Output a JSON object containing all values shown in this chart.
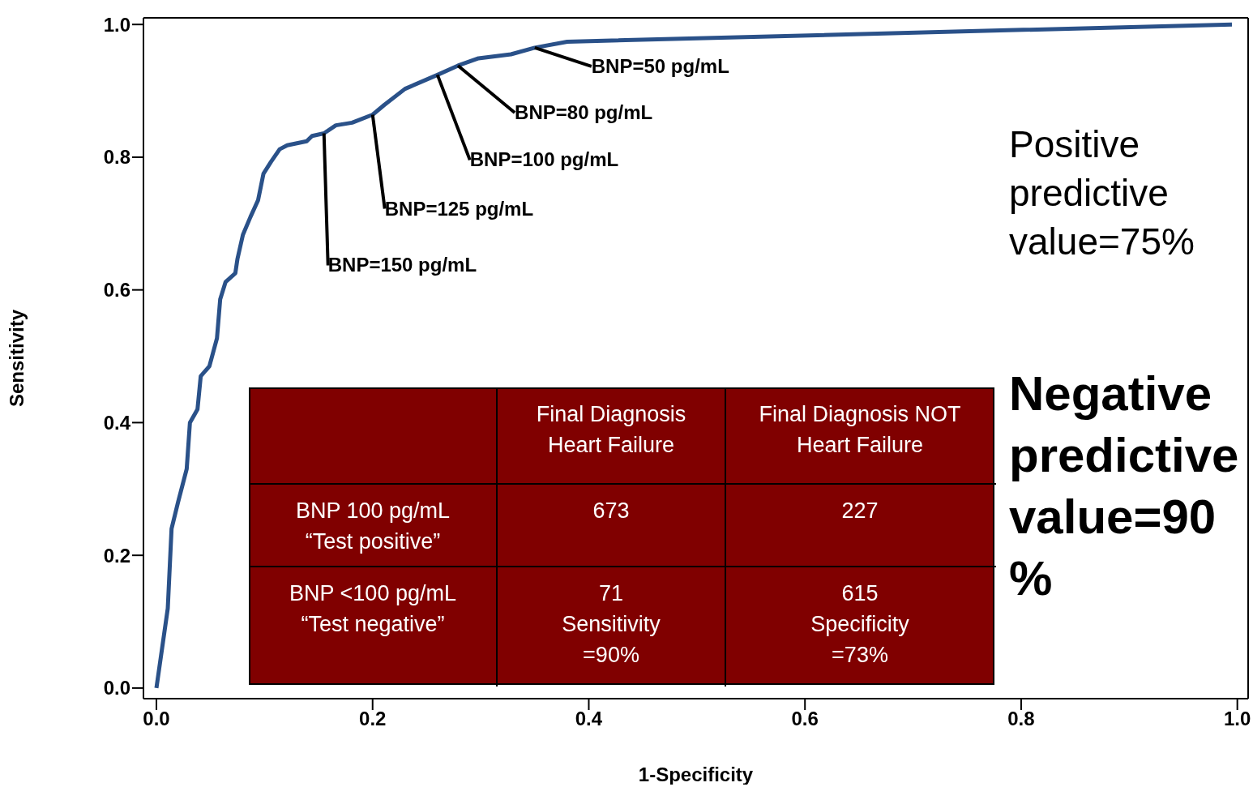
{
  "chart_data": {
    "type": "line",
    "xlabel": "1-Specificity",
    "ylabel": "Sensitivity",
    "x": [
      0,
      0.0105,
      0.014,
      0.02,
      0.028,
      0.031,
      0.038,
      0.041,
      0.049,
      0.056,
      0.059,
      0.064,
      0.073,
      0.075,
      0.08,
      0.087,
      0.094,
      0.099,
      0.106,
      0.114,
      0.121,
      0.139,
      0.144,
      0.155,
      0.166,
      0.181,
      0.2,
      0.211,
      0.23,
      0.26,
      0.279,
      0.298,
      0.328,
      0.35,
      0.38,
      0.995
    ],
    "series": [
      {
        "color": "#2a5189",
        "values": [
          0,
          0.12,
          0.24,
          0.28,
          0.33,
          0.4,
          0.42,
          0.47,
          0.485,
          0.527,
          0.586,
          0.612,
          0.625,
          0.647,
          0.683,
          0.71,
          0.735,
          0.775,
          0.793,
          0.812,
          0.818,
          0.824,
          0.832,
          0.836,
          0.848,
          0.852,
          0.864,
          0.879,
          0.903,
          0.924,
          0.938,
          0.949,
          0.955,
          0.965,
          0.974,
          1.0
        ]
      }
    ],
    "xlim": [
      -0.012,
      1.01
    ],
    "ylim": [
      -0.016,
      1.01
    ],
    "xticks": [
      {
        "value": 0,
        "label": "0.0"
      },
      {
        "value": 0.2,
        "label": "0.2"
      },
      {
        "value": 0.4,
        "label": "0.4"
      },
      {
        "value": 0.6,
        "label": "0.6"
      },
      {
        "value": 0.8,
        "label": "0.8"
      },
      {
        "value": 1,
        "label": "1.0"
      }
    ],
    "yticks": [
      {
        "value": 0,
        "label": "0.0"
      },
      {
        "value": 0.2,
        "label": "0.2"
      },
      {
        "value": 0.4,
        "label": "0.4"
      },
      {
        "value": 0.6,
        "label": "0.6"
      },
      {
        "value": 0.8,
        "label": "0.8"
      },
      {
        "value": 1,
        "label": "1.0"
      }
    ],
    "marker": "none",
    "line_style": "solid",
    "annotations": [
      {
        "text": "BNP=50 pg/mL",
        "x": 0.35,
        "y": 0.965
      },
      {
        "text": "BNP=80 pg/mL",
        "x": 0.279,
        "y": 0.938
      },
      {
        "text": "BNP=100 pg/mL",
        "x": 0.26,
        "y": 0.924
      },
      {
        "text": "BNP=125 pg/mL",
        "x": 0.2,
        "y": 0.864
      },
      {
        "text": "BNP=150 pg/mL",
        "x": 0.155,
        "y": 0.836
      },
      "Final Diagnosis\nHeart Failure",
      "Final Diagnosis NOT\nHeart Failure",
      "BNP 100 pg/mL\n“Test positive”",
      "673",
      "227",
      "BNP <100 pg/mL\n“Test negative”",
      "71\nSensitivity\n=90%",
      "615\nSpecificity\n=73%",
      "Positive predictive value=75%",
      "Negative predictive value=90 %"
    ]
  }
}
